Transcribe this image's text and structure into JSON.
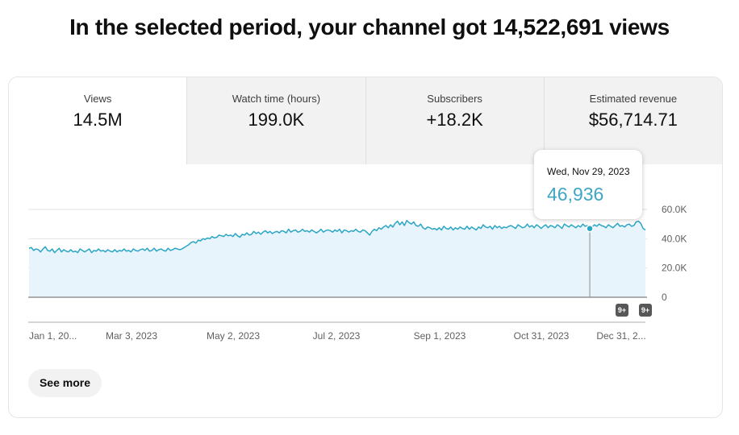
{
  "headline": "In the selected period, your channel got 14,522,691 views",
  "tabs": [
    {
      "label": "Views",
      "value": "14.5M",
      "active": true
    },
    {
      "label": "Watch time (hours)",
      "value": "199.0K",
      "active": false
    },
    {
      "label": "Subscribers",
      "value": "+18.2K",
      "active": false
    },
    {
      "label": "Estimated revenue",
      "value": "$56,714.71",
      "active": false
    }
  ],
  "tooltip": {
    "date": "Wed, Nov 29, 2023",
    "value": "46,936"
  },
  "badges": [
    "9+",
    "9+"
  ],
  "see_more_label": "See more",
  "colors": {
    "line": "#2ba5c4",
    "fill": "#e8f4fb",
    "tooltip_value": "#3ea6c4"
  },
  "chart_data": {
    "type": "area",
    "series": [
      {
        "values": [
          33500,
          34000,
          32000,
          33000,
          32500,
          31000,
          33000,
          34500,
          32000,
          31500,
          33000,
          30500,
          32000,
          33500,
          31000,
          32500,
          31500,
          31000,
          32500,
          31000,
          31500,
          30500,
          33000,
          32000,
          31000,
          32000,
          33000,
          30500,
          32000,
          31500,
          33000,
          31500,
          32000,
          31000,
          32500,
          31500,
          31000,
          32500,
          31000,
          32000,
          31500,
          33000,
          31500,
          32000,
          31000,
          33000,
          32000,
          31500,
          32500,
          33000,
          32000,
          33500,
          31500,
          32000,
          33500,
          31500,
          32500,
          33000,
          32000,
          31500,
          33500,
          32000,
          32500,
          33500,
          33000,
          32500,
          33000,
          34000,
          35000,
          36000,
          37500,
          38000,
          37000,
          39000,
          38500,
          40000,
          39500,
          40500,
          40000,
          41500,
          40500,
          41000,
          42500,
          42000,
          41500,
          43000,
          42000,
          42500,
          41500,
          43500,
          42000,
          41000,
          43000,
          42500,
          44000,
          42500,
          43000,
          45000,
          43500,
          44500,
          43000,
          44500,
          45500,
          44000,
          45000,
          43500,
          44500,
          45000,
          44000,
          45500,
          45000,
          44000,
          46500,
          44500,
          45500,
          46000,
          44500,
          45000,
          46500,
          45000,
          45500,
          44500,
          46000,
          45000,
          44000,
          45000,
          46500,
          44500,
          45500,
          46000,
          45500,
          44500,
          46000,
          45000,
          46500,
          44000,
          46000,
          45500,
          44500,
          45500,
          45000,
          46500,
          45000,
          44500,
          46000,
          45500,
          44000,
          42500,
          45000,
          46500,
          45500,
          47500,
          46500,
          48000,
          49000,
          47500,
          49500,
          48000,
          50500,
          52000,
          49500,
          51500,
          49000,
          52500,
          51000,
          50000,
          51500,
          49000,
          48500,
          50000,
          47500,
          46500,
          48000,
          47500,
          46500,
          47000,
          46000,
          47500,
          46000,
          48500,
          47000,
          46500,
          48000,
          46000,
          47500,
          46500,
          48000,
          47000,
          46500,
          48500,
          46500,
          48000,
          47000,
          46000,
          48000,
          47000,
          49500,
          48000,
          47500,
          48500,
          46500,
          49000,
          47500,
          48500,
          47000,
          48000,
          47500,
          48500,
          49000,
          48000,
          47000,
          49500,
          48500,
          47500,
          48000,
          50000,
          48000,
          49000,
          47500,
          49500,
          48500,
          47000,
          48500,
          49500,
          47500,
          49000,
          48500,
          47500,
          49500,
          48500,
          47000,
          50000,
          49000,
          48000,
          49500,
          48500,
          47500,
          49000,
          48000,
          50000,
          48500,
          49000,
          46936,
          48000,
          49500,
          48500,
          50000,
          49000,
          48500,
          47500,
          49500,
          48500,
          47500,
          49000,
          50500,
          48500,
          49000,
          48000,
          49500,
          50000,
          48500,
          49000,
          51500,
          52000,
          50500,
          47000,
          46000
        ]
      }
    ],
    "x_tick_labels": [
      "Jan 1, 20...",
      "Mar 3, 2023",
      "May 2, 2023",
      "Jul 2, 2023",
      "Sep 1, 2023",
      "Oct 31, 2023",
      "Dec 31, 2..."
    ],
    "y_tick_labels": [
      "60.0K",
      "40.0K",
      "20.0K",
      "0"
    ],
    "ylim": [
      0,
      60000
    ],
    "highlight": {
      "label": "Wed, Nov 29, 2023",
      "value": 46936
    },
    "grid": true
  }
}
